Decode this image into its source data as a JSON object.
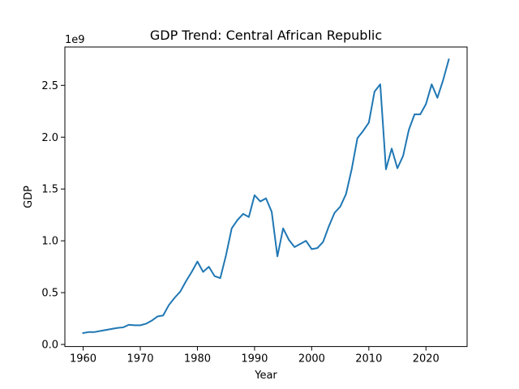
{
  "chart_data": {
    "type": "line",
    "title": "GDP Trend: Central African Republic",
    "xlabel": "Year",
    "ylabel": "GDP",
    "offset_text": "1e9",
    "x_ticks": [
      1960,
      1970,
      1980,
      1990,
      2000,
      2010,
      2020
    ],
    "y_ticks": [
      0.0,
      0.5,
      1.0,
      1.5,
      2.0,
      2.5
    ],
    "y_tick_labels": [
      "0.0",
      "0.5",
      "1.0",
      "1.5",
      "2.0",
      "2.5"
    ],
    "xlim": [
      1956.8,
      2027.2
    ],
    "ylim": [
      -0.02,
      2.87
    ],
    "y_unit_multiplier": 1000000000.0,
    "grid": false,
    "line_color": "#1f77b4",
    "series": [
      {
        "x": [
          1960,
          1961,
          1962,
          1963,
          1964,
          1965,
          1966,
          1967,
          1968,
          1969,
          1970,
          1971,
          1972,
          1973,
          1974,
          1975,
          1976,
          1977,
          1978,
          1979,
          1980,
          1981,
          1982,
          1983,
          1984,
          1985,
          1986,
          1987,
          1988,
          1989,
          1990,
          1991,
          1992,
          1993,
          1994,
          1995,
          1996,
          1997,
          1998,
          1999,
          2000,
          2001,
          2002,
          2003,
          2004,
          2005,
          2006,
          2007,
          2008,
          2009,
          2010,
          2011,
          2012,
          2013,
          2014,
          2015,
          2016,
          2017,
          2018,
          2019,
          2020,
          2021,
          2022,
          2023,
          2024
        ],
        "values": [
          0.11,
          0.12,
          0.12,
          0.13,
          0.14,
          0.15,
          0.16,
          0.165,
          0.19,
          0.185,
          0.185,
          0.2,
          0.23,
          0.27,
          0.28,
          0.38,
          0.45,
          0.51,
          0.61,
          0.7,
          0.8,
          0.7,
          0.75,
          0.66,
          0.64,
          0.86,
          1.12,
          1.2,
          1.26,
          1.23,
          1.44,
          1.38,
          1.41,
          1.28,
          0.85,
          1.12,
          1.01,
          0.94,
          0.97,
          1.0,
          0.92,
          0.93,
          0.99,
          1.14,
          1.27,
          1.33,
          1.45,
          1.69,
          1.99,
          2.06,
          2.14,
          2.44,
          2.51,
          1.69,
          1.89,
          1.7,
          1.82,
          2.07,
          2.22,
          2.22,
          2.32,
          2.51,
          2.38,
          2.55,
          2.75
        ]
      }
    ]
  }
}
